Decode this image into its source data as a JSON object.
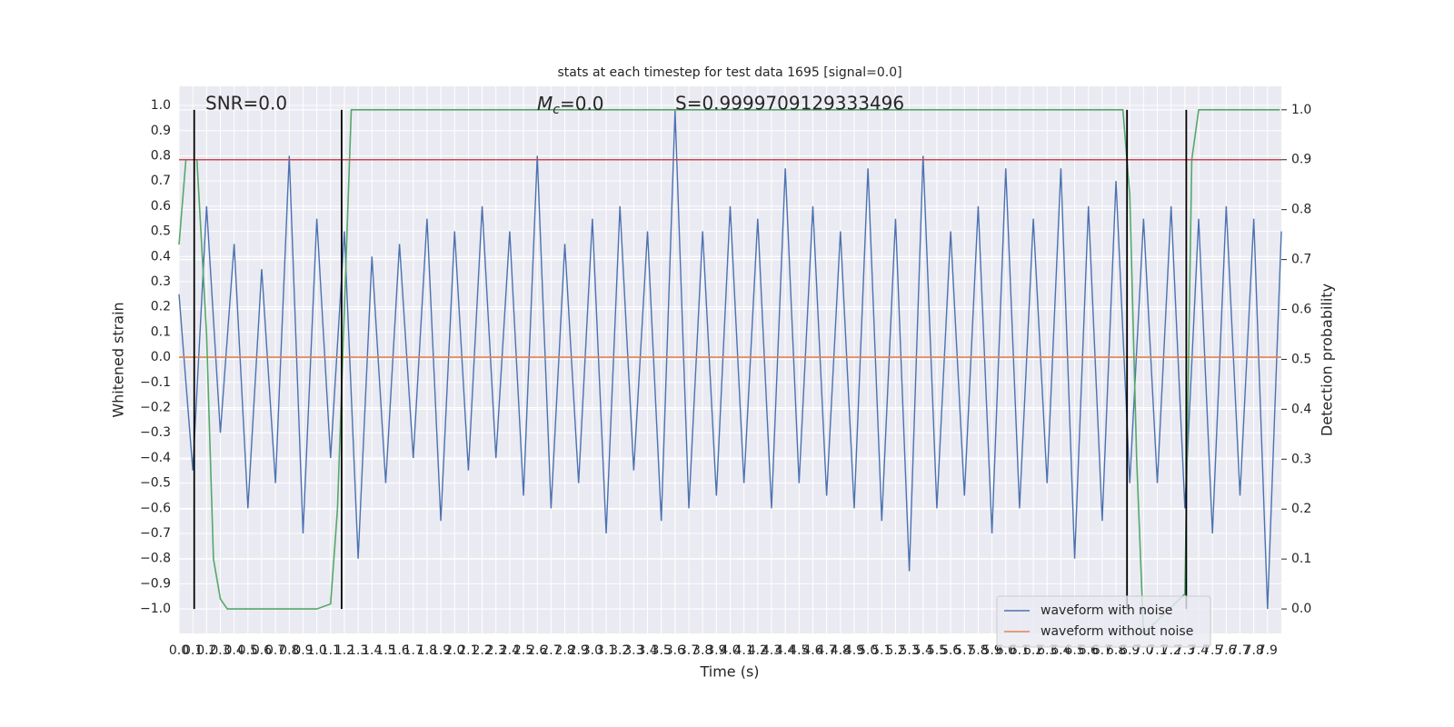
{
  "chart_data": {
    "type": "line",
    "title": "stats at each timestep for test data 1695 [signal=0.0]",
    "xlabel": "Time (s)",
    "ylabel": "Whitened strain",
    "y2label": "Detection probability",
    "annotations": [
      "SNR=0.0",
      {
        "main": "M",
        "sub": "c",
        "rest": "=0.0"
      },
      "S=0.9999709129333496"
    ],
    "xlim": [
      0,
      8.0
    ],
    "ylim": [
      -1.097,
      1.076
    ],
    "y2lim": [
      -0.049,
      1.047
    ],
    "xticks": [
      {
        "value": 0,
        "label": "0.0"
      },
      0.1,
      0.2,
      0.3,
      0.4,
      0.5,
      0.6,
      0.7,
      0.8,
      0.9,
      {
        "value": 1,
        "label": "1.0"
      },
      1.1,
      1.2,
      1.3,
      1.4,
      1.5,
      1.6,
      1.7,
      1.8,
      1.9,
      {
        "value": 2,
        "label": "2.0"
      },
      2.1,
      2.2,
      2.3,
      2.4,
      2.5,
      2.6,
      2.7,
      2.8,
      2.9,
      {
        "value": 3,
        "label": "3.0"
      },
      3.1,
      3.2,
      3.3,
      3.4,
      3.5,
      3.6,
      3.7,
      3.8,
      3.9,
      {
        "value": 4,
        "label": "4.0"
      },
      4.1,
      4.2,
      4.3,
      4.4,
      4.5,
      4.6,
      4.7,
      4.8,
      4.9,
      {
        "value": 5,
        "label": "5.0"
      },
      5.1,
      5.2,
      5.3,
      5.4,
      5.5,
      5.6,
      5.7,
      5.8,
      5.9,
      {
        "value": 6,
        "label": "6.0"
      },
      6.1,
      6.2,
      6.3,
      6.4,
      6.5,
      6.6,
      6.7,
      6.8,
      6.9,
      {
        "value": 7,
        "label": "7.0"
      },
      7.1,
      7.2,
      7.3,
      7.4,
      7.5,
      7.6,
      7.7,
      7.8,
      7.9
    ],
    "yticks": [
      {
        "value": -1,
        "label": "−1.0"
      },
      {
        "value": -0.9,
        "label": "−0.9"
      },
      {
        "value": -0.8,
        "label": "−0.8"
      },
      {
        "value": -0.7,
        "label": "−0.7"
      },
      {
        "value": -0.6,
        "label": "−0.6"
      },
      {
        "value": -0.5,
        "label": "−0.5"
      },
      {
        "value": -0.4,
        "label": "−0.4"
      },
      {
        "value": -0.3,
        "label": "−0.3"
      },
      {
        "value": -0.2,
        "label": "−0.2"
      },
      {
        "value": -0.1,
        "label": "−0.1"
      },
      {
        "value": 0,
        "label": "0.0"
      },
      0.1,
      0.2,
      0.3,
      0.4,
      0.5,
      0.6,
      0.7,
      0.8,
      0.9,
      {
        "value": 1,
        "label": "1.0"
      }
    ],
    "y2ticks": [
      {
        "value": 0,
        "label": "0.0"
      },
      0.1,
      0.2,
      0.3,
      0.4,
      0.5,
      0.6,
      0.7,
      0.8,
      0.9,
      {
        "value": 1,
        "label": "1.0"
      }
    ],
    "grid": true,
    "legend": "lower right",
    "series": [
      {
        "name": "waveform with noise",
        "color": "#4c72b0",
        "x": [
          0,
          0.1,
          0.2,
          0.3,
          0.4,
          0.5,
          0.6,
          0.7,
          0.8,
          0.9,
          1.0,
          1.1,
          1.2,
          1.3,
          1.4,
          1.5,
          1.6,
          1.7,
          1.8,
          1.9,
          2.0,
          2.1,
          2.2,
          2.3,
          2.4,
          2.5,
          2.6,
          2.7,
          2.8,
          2.9,
          3.0,
          3.1,
          3.2,
          3.3,
          3.4,
          3.5,
          3.6,
          3.7,
          3.8,
          3.9,
          4.0,
          4.1,
          4.2,
          4.3,
          4.4,
          4.5,
          4.6,
          4.7,
          4.8,
          4.9,
          5.0,
          5.1,
          5.2,
          5.3,
          5.4,
          5.5,
          5.6,
          5.7,
          5.8,
          5.9,
          6.0,
          6.1,
          6.2,
          6.3,
          6.4,
          6.5,
          6.6,
          6.7,
          6.8,
          6.9,
          7.0,
          7.1,
          7.2,
          7.3,
          7.4,
          7.5,
          7.6,
          7.7,
          7.8,
          7.9,
          8.0
        ],
        "values": [
          0.25,
          -0.45,
          0.6,
          -0.3,
          0.45,
          -0.6,
          0.35,
          -0.5,
          0.8,
          -0.7,
          0.55,
          -0.4,
          0.5,
          -0.8,
          0.4,
          -0.5,
          0.45,
          -0.4,
          0.55,
          -0.65,
          0.5,
          -0.45,
          0.6,
          -0.4,
          0.5,
          -0.55,
          0.8,
          -0.6,
          0.45,
          -0.5,
          0.55,
          -0.7,
          0.6,
          -0.45,
          0.5,
          -0.65,
          0.98,
          -0.6,
          0.5,
          -0.55,
          0.6,
          -0.5,
          0.55,
          -0.6,
          0.75,
          -0.5,
          0.6,
          -0.55,
          0.5,
          -0.6,
          0.75,
          -0.65,
          0.55,
          -0.85,
          0.8,
          -0.6,
          0.5,
          -0.55,
          0.6,
          -0.7,
          0.75,
          -0.6,
          0.55,
          -0.5,
          0.75,
          -0.8,
          0.6,
          -0.65,
          0.7,
          -0.5,
          0.55,
          -0.5,
          0.6,
          -0.6,
          0.55,
          -0.7,
          0.6,
          -0.55,
          0.55,
          -1.0,
          0.5
        ]
      },
      {
        "name": "waveform without noise",
        "color": "#dd8452",
        "x": [
          0,
          8.0
        ],
        "values": [
          0,
          0
        ]
      },
      {
        "color": "#55a868",
        "axis": "y2",
        "x": [
          0,
          0.05,
          0.1,
          0.13,
          0.2,
          0.25,
          0.3,
          0.35,
          0.6,
          0.75,
          1.0,
          1.1,
          1.15,
          1.2,
          1.25,
          6.85,
          6.9,
          6.95,
          7.0,
          7.3,
          7.35,
          7.4,
          7.99
        ],
        "values": [
          0.73,
          0.9,
          0.9,
          0.9,
          0.55,
          0.1,
          0.02,
          0.0,
          0.0,
          0.0,
          0.0,
          0.01,
          0.2,
          0.6,
          1.0,
          1.0,
          0.83,
          0.3,
          -0.05,
          0.03,
          0.9,
          1.0,
          1.0
        ]
      }
    ],
    "hlines_y2": [
      {
        "value": 0.9,
        "color": "#c44e52"
      }
    ],
    "vlines": [
      0.11,
      1.18,
      6.88,
      7.31
    ]
  }
}
